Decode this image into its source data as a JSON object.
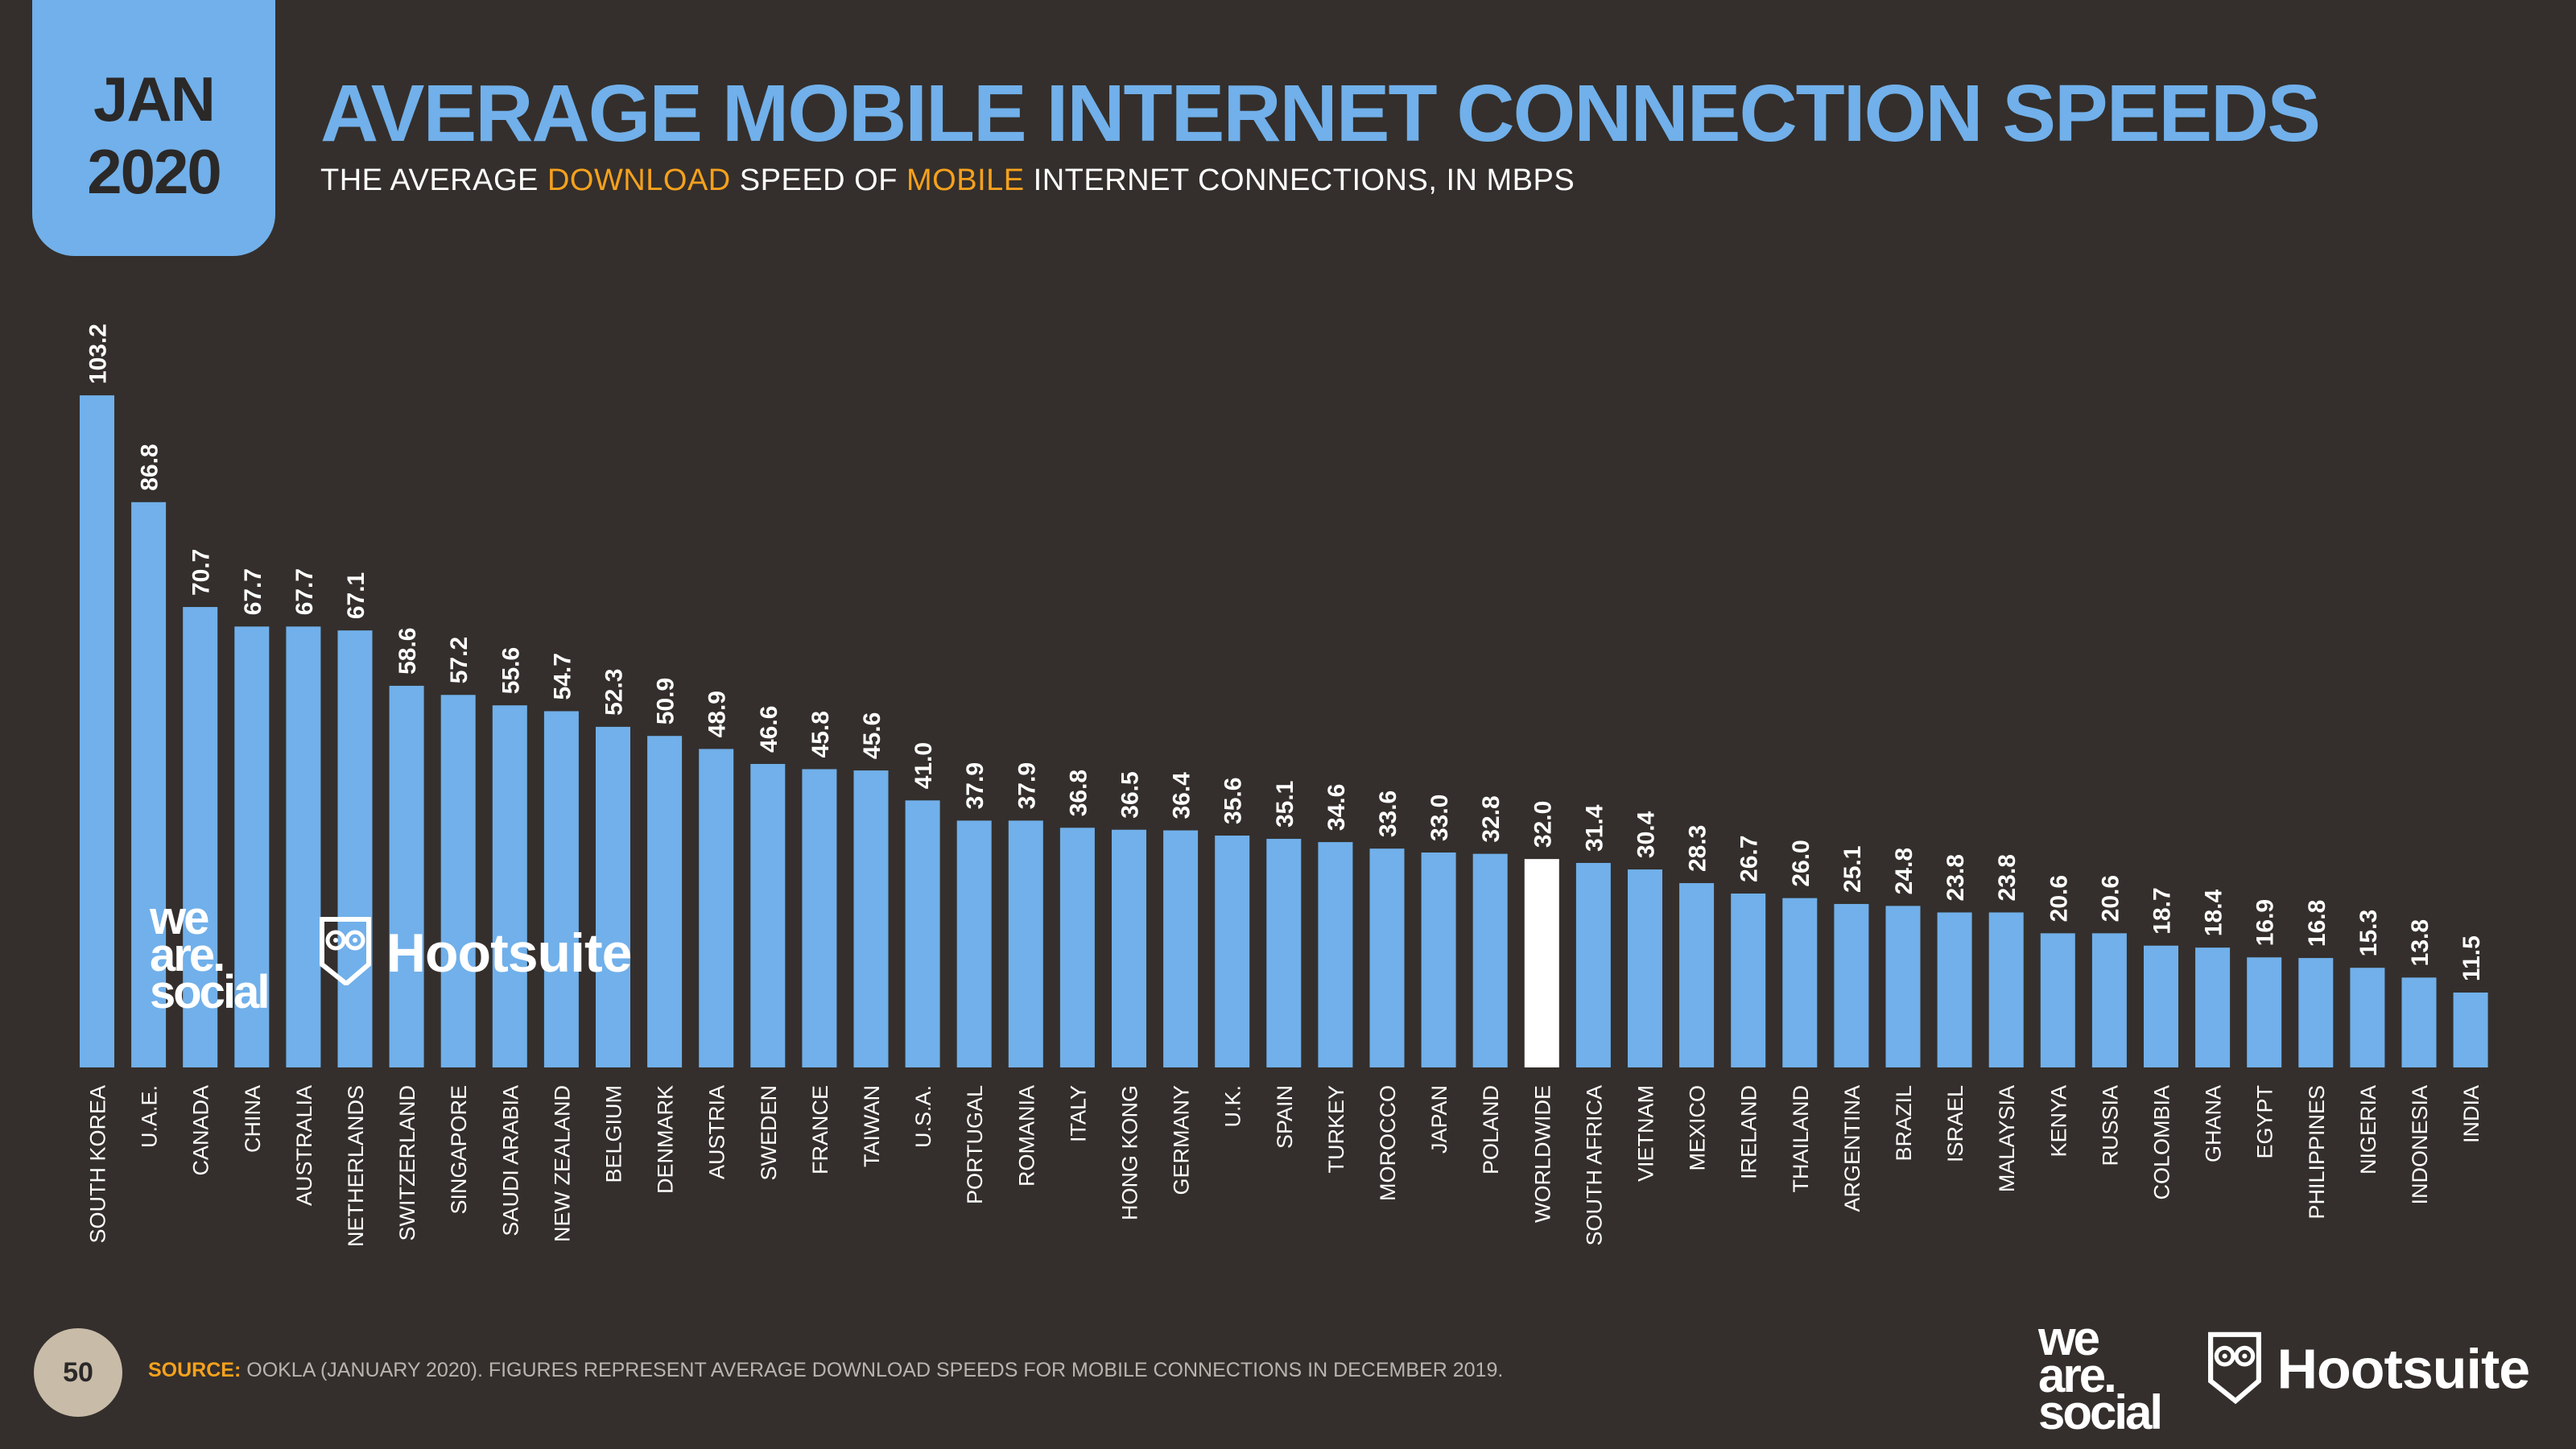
{
  "badge": {
    "month": "JAN",
    "year": "2020"
  },
  "title": "AVERAGE MOBILE INTERNET CONNECTION SPEEDS",
  "subtitle": {
    "part1": "THE AVERAGE ",
    "highlight1": "DOWNLOAD",
    "part2": " SPEED OF ",
    "highlight2": "MOBILE",
    "part3": " INTERNET CONNECTIONS, IN MBPS"
  },
  "colors": {
    "accent": "#71b0ea",
    "highlight": "#f6a11d",
    "background": "#342f2c",
    "worldwide_bar": "#ffffff"
  },
  "chart_data": {
    "type": "bar",
    "title": "AVERAGE MOBILE INTERNET CONNECTION SPEEDS",
    "ylabel": "MBPS",
    "ylim": [
      0,
      105
    ],
    "highlight_category": "WORLDWIDE",
    "categories": [
      "SOUTH KOREA",
      "U.A.E.",
      "CANADA",
      "CHINA",
      "AUSTRALIA",
      "NETHERLANDS",
      "SWITZERLAND",
      "SINGAPORE",
      "SAUDI ARABIA",
      "NEW ZEALAND",
      "BELGIUM",
      "DENMARK",
      "AUSTRIA",
      "SWEDEN",
      "FRANCE",
      "TAIWAN",
      "U.S.A.",
      "PORTUGAL",
      "ROMANIA",
      "ITALY",
      "HONG KONG",
      "GERMANY",
      "U.K.",
      "SPAIN",
      "TURKEY",
      "MOROCCO",
      "JAPAN",
      "POLAND",
      "WORLDWIDE",
      "SOUTH AFRICA",
      "VIETNAM",
      "MEXICO",
      "IRELAND",
      "THAILAND",
      "ARGENTINA",
      "BRAZIL",
      "ISRAEL",
      "MALAYSIA",
      "KENYA",
      "RUSSIA",
      "COLOMBIA",
      "GHANA",
      "EGYPT",
      "PHILIPPINES",
      "NIGERIA",
      "INDONESIA",
      "INDIA"
    ],
    "values": [
      103.2,
      86.8,
      70.7,
      67.7,
      67.7,
      67.1,
      58.6,
      57.2,
      55.6,
      54.7,
      52.3,
      50.9,
      48.9,
      46.6,
      45.8,
      45.6,
      41.0,
      37.9,
      37.9,
      36.8,
      36.5,
      36.4,
      35.6,
      35.1,
      34.6,
      33.6,
      33.0,
      32.8,
      32.0,
      31.4,
      30.4,
      28.3,
      26.7,
      26.0,
      25.1,
      24.8,
      23.8,
      23.8,
      20.6,
      20.6,
      18.7,
      18.4,
      16.9,
      16.8,
      15.3,
      13.8,
      11.5
    ]
  },
  "watermark": {
    "we": "we",
    "are": "are.",
    "social": "social",
    "hootsuite": "Hootsuite"
  },
  "footer": {
    "page_number": "50",
    "source_label": "SOURCE:",
    "source_text": " OOKLA (JANUARY 2020). FIGURES REPRESENT AVERAGE DOWNLOAD SPEEDS FOR MOBILE CONNECTIONS IN DECEMBER 2019."
  },
  "logos": {
    "we": "we",
    "are": "are.",
    "social": "social",
    "hootsuite": "Hootsuite"
  }
}
